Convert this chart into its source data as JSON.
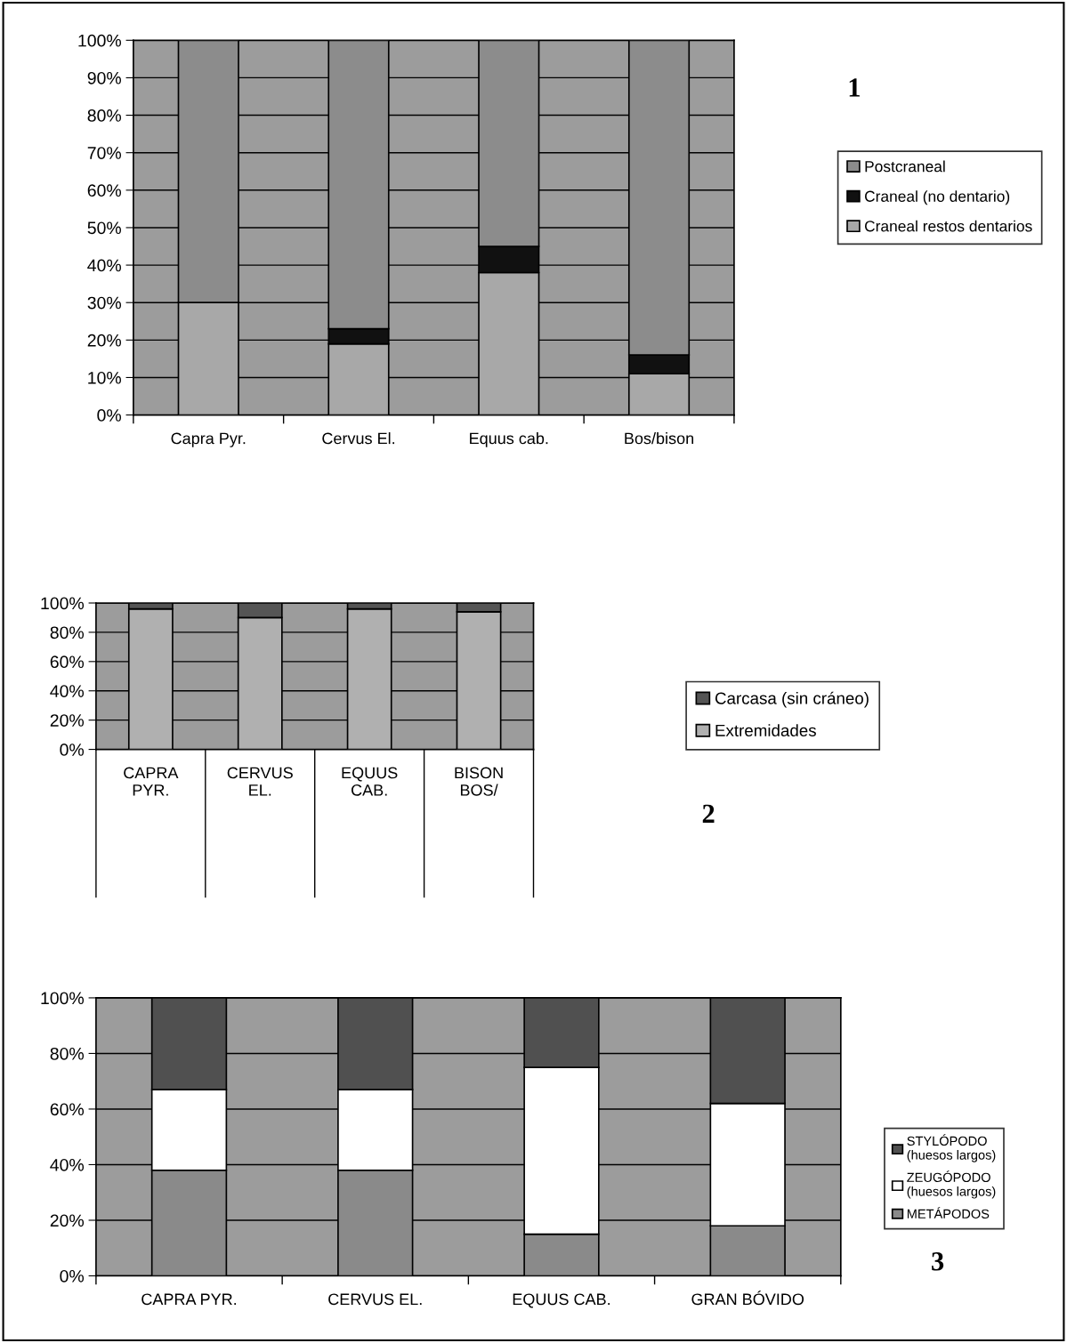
{
  "chart_data": [
    {
      "type": "bar",
      "stacked": true,
      "categories": [
        "Capra Pyr.",
        "Cervus El.",
        "Equus cab.",
        "Bos/bison"
      ],
      "series": [
        {
          "name": "Craneal restos dentarios",
          "color": "#a8a8a8",
          "values": [
            30,
            19,
            38,
            11
          ]
        },
        {
          "name": "Craneal (no dentario)",
          "color": "#111111",
          "values": [
            0,
            4,
            7,
            5
          ]
        },
        {
          "name": "Postcraneal",
          "color": "#8c8c8c",
          "values": [
            70,
            77,
            55,
            84
          ]
        }
      ],
      "ylim": [
        0,
        100
      ],
      "yticks": [
        {
          "value": 0,
          "label": "0%"
        },
        {
          "value": 10,
          "label": "10%"
        },
        {
          "value": 20,
          "label": "20%"
        },
        {
          "value": 30,
          "label": "30%"
        },
        {
          "value": 40,
          "label": "40%"
        },
        {
          "value": 50,
          "label": "50%"
        },
        {
          "value": 60,
          "label": "60%"
        },
        {
          "value": 70,
          "label": "70%"
        },
        {
          "value": 80,
          "label": "80%"
        },
        {
          "value": 90,
          "label": "90%"
        },
        {
          "value": 100,
          "label": "100%"
        }
      ],
      "grid": "y",
      "legend": "right",
      "annotations": [
        "1"
      ]
    },
    {
      "type": "bar",
      "stacked": true,
      "categories": [
        "CAPRA\nPYR.",
        "CERVUS\nEL.",
        "EQUUS\nCAB.",
        "BISON\nBOS/"
      ],
      "series": [
        {
          "name": "Extremidades",
          "color": "#b0b0b0",
          "values": [
            96,
            90,
            96,
            94
          ]
        },
        {
          "name": "Carcasa (sin cráneo)",
          "color": "#555555",
          "values": [
            4,
            10,
            4,
            6
          ]
        }
      ],
      "ylim": [
        0,
        100
      ],
      "yticks": [
        {
          "value": 0,
          "label": "0%"
        },
        {
          "value": 20,
          "label": "20%"
        },
        {
          "value": 40,
          "label": "40%"
        },
        {
          "value": 60,
          "label": "60%"
        },
        {
          "value": 80,
          "label": "80%"
        },
        {
          "value": 100,
          "label": "100%"
        }
      ],
      "grid": "y",
      "legend": "right",
      "annotations": [
        "2"
      ]
    },
    {
      "type": "bar",
      "stacked": true,
      "categories": [
        "CAPRA PYR.",
        "CERVUS EL.",
        "EQUUS CAB.",
        "GRAN BÓVIDO"
      ],
      "series": [
        {
          "name": "METÁPODOS",
          "color": "#8a8a8a",
          "values": [
            38,
            38,
            15,
            18
          ]
        },
        {
          "name": "ZEUGÓPODO\n(huesos largos)",
          "color": "#ffffff",
          "values": [
            29,
            29,
            60,
            44
          ]
        },
        {
          "name": "STYLÓPODO\n(huesos largos)",
          "color": "#505050",
          "values": [
            33,
            33,
            25,
            38
          ]
        }
      ],
      "ylim": [
        0,
        100
      ],
      "yticks": [
        {
          "value": 0,
          "label": "0%"
        },
        {
          "value": 20,
          "label": "20%"
        },
        {
          "value": 40,
          "label": "40%"
        },
        {
          "value": 60,
          "label": "60%"
        },
        {
          "value": 80,
          "label": "80%"
        },
        {
          "value": 100,
          "label": "100%"
        }
      ],
      "grid": "y",
      "legend": "right",
      "annotations": [
        "3"
      ]
    }
  ]
}
